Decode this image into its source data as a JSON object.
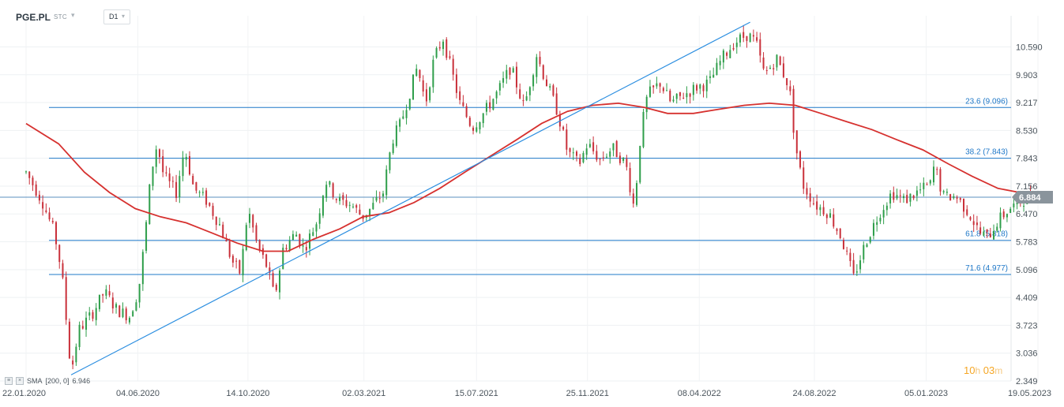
{
  "header": {
    "symbol": "PGE.PL",
    "chart_type_label": "STC",
    "timeframe": "D1"
  },
  "indicator_legend": {
    "name": "SMA",
    "params": "[200, 0]",
    "value": "6.946"
  },
  "countdown": {
    "hours": "10",
    "h_unit": "h",
    "minutes": "03",
    "m_unit": "m"
  },
  "colors": {
    "up": "#2e9e4a",
    "down": "#c9303a",
    "sma": "#d6312f",
    "fib": "#1f78c8",
    "trendline": "#2b8ee0",
    "price_tag": "#8a949c"
  },
  "chart_data": {
    "type": "candlestick",
    "title": "",
    "xlabel": "",
    "ylabel": "",
    "ylim": [
      2.349,
      11.3
    ],
    "y_ticks": [
      "10.590",
      "9.903",
      "9.217",
      "8.530",
      "7.843",
      "7.156",
      "6.470",
      "5.783",
      "5.096",
      "4.409",
      "3.723",
      "3.036",
      "2.349"
    ],
    "x_ticks": [
      "22.01.2020",
      "04.06.2020",
      "14.10.2020",
      "02.03.2021",
      "15.07.2021",
      "25.11.2021",
      "08.04.2022",
      "24.08.2022",
      "05.01.2023",
      "19.05.2023"
    ],
    "x_range": [
      "2020-01-22",
      "2023-05-19"
    ],
    "current_price": "6.884",
    "fib_levels": [
      {
        "label": "23.6 (9.096)",
        "value": 9.096
      },
      {
        "label": "38.2 (7.843)",
        "value": 7.843
      },
      {
        "label": "61.8 (5.818)",
        "value": 5.818
      },
      {
        "label": "71.6 (4.977)",
        "value": 4.977
      }
    ],
    "trendline": {
      "from": [
        "2020-03-16",
        2.5
      ],
      "to": [
        "2022-06-08",
        11.2
      ]
    },
    "price_path": [
      [
        "2020-01-22",
        7.5
      ],
      [
        "2020-02-10",
        6.8
      ],
      [
        "2020-02-25",
        6.0
      ],
      [
        "2020-03-05",
        5.0
      ],
      [
        "2020-03-16",
        2.55
      ],
      [
        "2020-03-25",
        3.6
      ],
      [
        "2020-04-10",
        4.0
      ],
      [
        "2020-04-25",
        4.55
      ],
      [
        "2020-05-10",
        4.1
      ],
      [
        "2020-05-25",
        3.95
      ],
      [
        "2020-06-05",
        4.6
      ],
      [
        "2020-06-12",
        5.8
      ],
      [
        "2020-06-20",
        7.5
      ],
      [
        "2020-06-27",
        8.2
      ],
      [
        "2020-07-05",
        7.4
      ],
      [
        "2020-07-20",
        7.0
      ],
      [
        "2020-07-30",
        8.1
      ],
      [
        "2020-08-10",
        7.1
      ],
      [
        "2020-08-25",
        6.8
      ],
      [
        "2020-09-10",
        6.2
      ],
      [
        "2020-09-25",
        5.3
      ],
      [
        "2020-10-05",
        5.0
      ],
      [
        "2020-10-14",
        6.6
      ],
      [
        "2020-10-25",
        5.7
      ],
      [
        "2020-11-05",
        5.2
      ],
      [
        "2020-11-15",
        4.4
      ],
      [
        "2020-11-25",
        5.6
      ],
      [
        "2020-12-10",
        6.0
      ],
      [
        "2020-12-20",
        5.6
      ],
      [
        "2021-01-05",
        6.3
      ],
      [
        "2021-01-15",
        7.3
      ],
      [
        "2021-01-30",
        6.8
      ],
      [
        "2021-02-15",
        6.7
      ],
      [
        "2021-02-28",
        6.4
      ],
      [
        "2021-03-10",
        6.6
      ],
      [
        "2021-03-25",
        7.0
      ],
      [
        "2021-04-05",
        8.3
      ],
      [
        "2021-04-15",
        8.7
      ],
      [
        "2021-04-25",
        9.4
      ],
      [
        "2021-05-05",
        10.1
      ],
      [
        "2021-05-15",
        9.2
      ],
      [
        "2021-05-25",
        10.3
      ],
      [
        "2021-06-05",
        10.8
      ],
      [
        "2021-06-15",
        10.0
      ],
      [
        "2021-06-25",
        9.2
      ],
      [
        "2021-07-10",
        8.6
      ],
      [
        "2021-07-25",
        9.0
      ],
      [
        "2021-08-10",
        9.5
      ],
      [
        "2021-08-25",
        10.1
      ],
      [
        "2021-09-10",
        9.1
      ],
      [
        "2021-09-25",
        10.4
      ],
      [
        "2021-10-05",
        9.8
      ],
      [
        "2021-10-20",
        9.0
      ],
      [
        "2021-11-01",
        8.0
      ],
      [
        "2021-11-15",
        7.7
      ],
      [
        "2021-11-25",
        8.2
      ],
      [
        "2021-12-10",
        7.8
      ],
      [
        "2021-12-25",
        8.1
      ],
      [
        "2022-01-10",
        7.7
      ],
      [
        "2022-01-20",
        6.6
      ],
      [
        "2022-01-28",
        8.5
      ],
      [
        "2022-02-05",
        9.4
      ],
      [
        "2022-02-20",
        9.7
      ],
      [
        "2022-03-05",
        9.2
      ],
      [
        "2022-03-20",
        9.4
      ],
      [
        "2022-04-05",
        9.6
      ],
      [
        "2022-04-20",
        9.7
      ],
      [
        "2022-05-05",
        10.3
      ],
      [
        "2022-05-20",
        10.7
      ],
      [
        "2022-06-05",
        10.9
      ],
      [
        "2022-06-15",
        10.7
      ],
      [
        "2022-06-25",
        9.9
      ],
      [
        "2022-07-10",
        10.3
      ],
      [
        "2022-07-25",
        9.6
      ],
      [
        "2022-08-01",
        8.2
      ],
      [
        "2022-08-10",
        7.2
      ],
      [
        "2022-08-25",
        6.7
      ],
      [
        "2022-09-10",
        6.5
      ],
      [
        "2022-09-25",
        5.9
      ],
      [
        "2022-10-10",
        4.9
      ],
      [
        "2022-10-25",
        5.8
      ],
      [
        "2022-11-10",
        6.5
      ],
      [
        "2022-11-25",
        7.0
      ],
      [
        "2022-12-10",
        6.8
      ],
      [
        "2022-12-25",
        7.0
      ],
      [
        "2023-01-10",
        7.2
      ],
      [
        "2023-01-15",
        7.7
      ],
      [
        "2023-01-25",
        6.9
      ],
      [
        "2023-02-10",
        6.9
      ],
      [
        "2023-02-25",
        6.5
      ],
      [
        "2023-03-10",
        6.0
      ],
      [
        "2023-03-20",
        5.9
      ],
      [
        "2023-04-01",
        6.3
      ],
      [
        "2023-04-15",
        6.6
      ],
      [
        "2023-04-30",
        6.8
      ],
      [
        "2023-05-10",
        6.9
      ]
    ],
    "sma_path": [
      [
        "2020-01-22",
        8.7
      ],
      [
        "2020-03-01",
        8.2
      ],
      [
        "2020-04-01",
        7.5
      ],
      [
        "2020-05-01",
        7.0
      ],
      [
        "2020-06-01",
        6.6
      ],
      [
        "2020-07-01",
        6.4
      ],
      [
        "2020-08-01",
        6.25
      ],
      [
        "2020-09-01",
        6.0
      ],
      [
        "2020-10-01",
        5.75
      ],
      [
        "2020-11-01",
        5.55
      ],
      [
        "2020-12-01",
        5.55
      ],
      [
        "2021-01-01",
        5.85
      ],
      [
        "2021-02-01",
        6.1
      ],
      [
        "2021-03-01",
        6.4
      ],
      [
        "2021-04-01",
        6.5
      ],
      [
        "2021-05-01",
        6.75
      ],
      [
        "2021-06-01",
        7.1
      ],
      [
        "2021-07-01",
        7.5
      ],
      [
        "2021-08-01",
        7.9
      ],
      [
        "2021-09-01",
        8.3
      ],
      [
        "2021-10-01",
        8.7
      ],
      [
        "2021-11-01",
        9.0
      ],
      [
        "2021-12-01",
        9.15
      ],
      [
        "2022-01-01",
        9.2
      ],
      [
        "2022-02-01",
        9.1
      ],
      [
        "2022-03-01",
        8.95
      ],
      [
        "2022-04-01",
        8.95
      ],
      [
        "2022-05-01",
        9.05
      ],
      [
        "2022-06-01",
        9.15
      ],
      [
        "2022-07-01",
        9.2
      ],
      [
        "2022-08-01",
        9.15
      ],
      [
        "2022-09-01",
        8.95
      ],
      [
        "2022-10-01",
        8.75
      ],
      [
        "2022-11-01",
        8.55
      ],
      [
        "2022-12-01",
        8.3
      ],
      [
        "2023-01-01",
        8.05
      ],
      [
        "2023-02-01",
        7.7
      ],
      [
        "2023-03-01",
        7.4
      ],
      [
        "2023-04-01",
        7.1
      ],
      [
        "2023-05-10",
        6.95
      ]
    ]
  }
}
